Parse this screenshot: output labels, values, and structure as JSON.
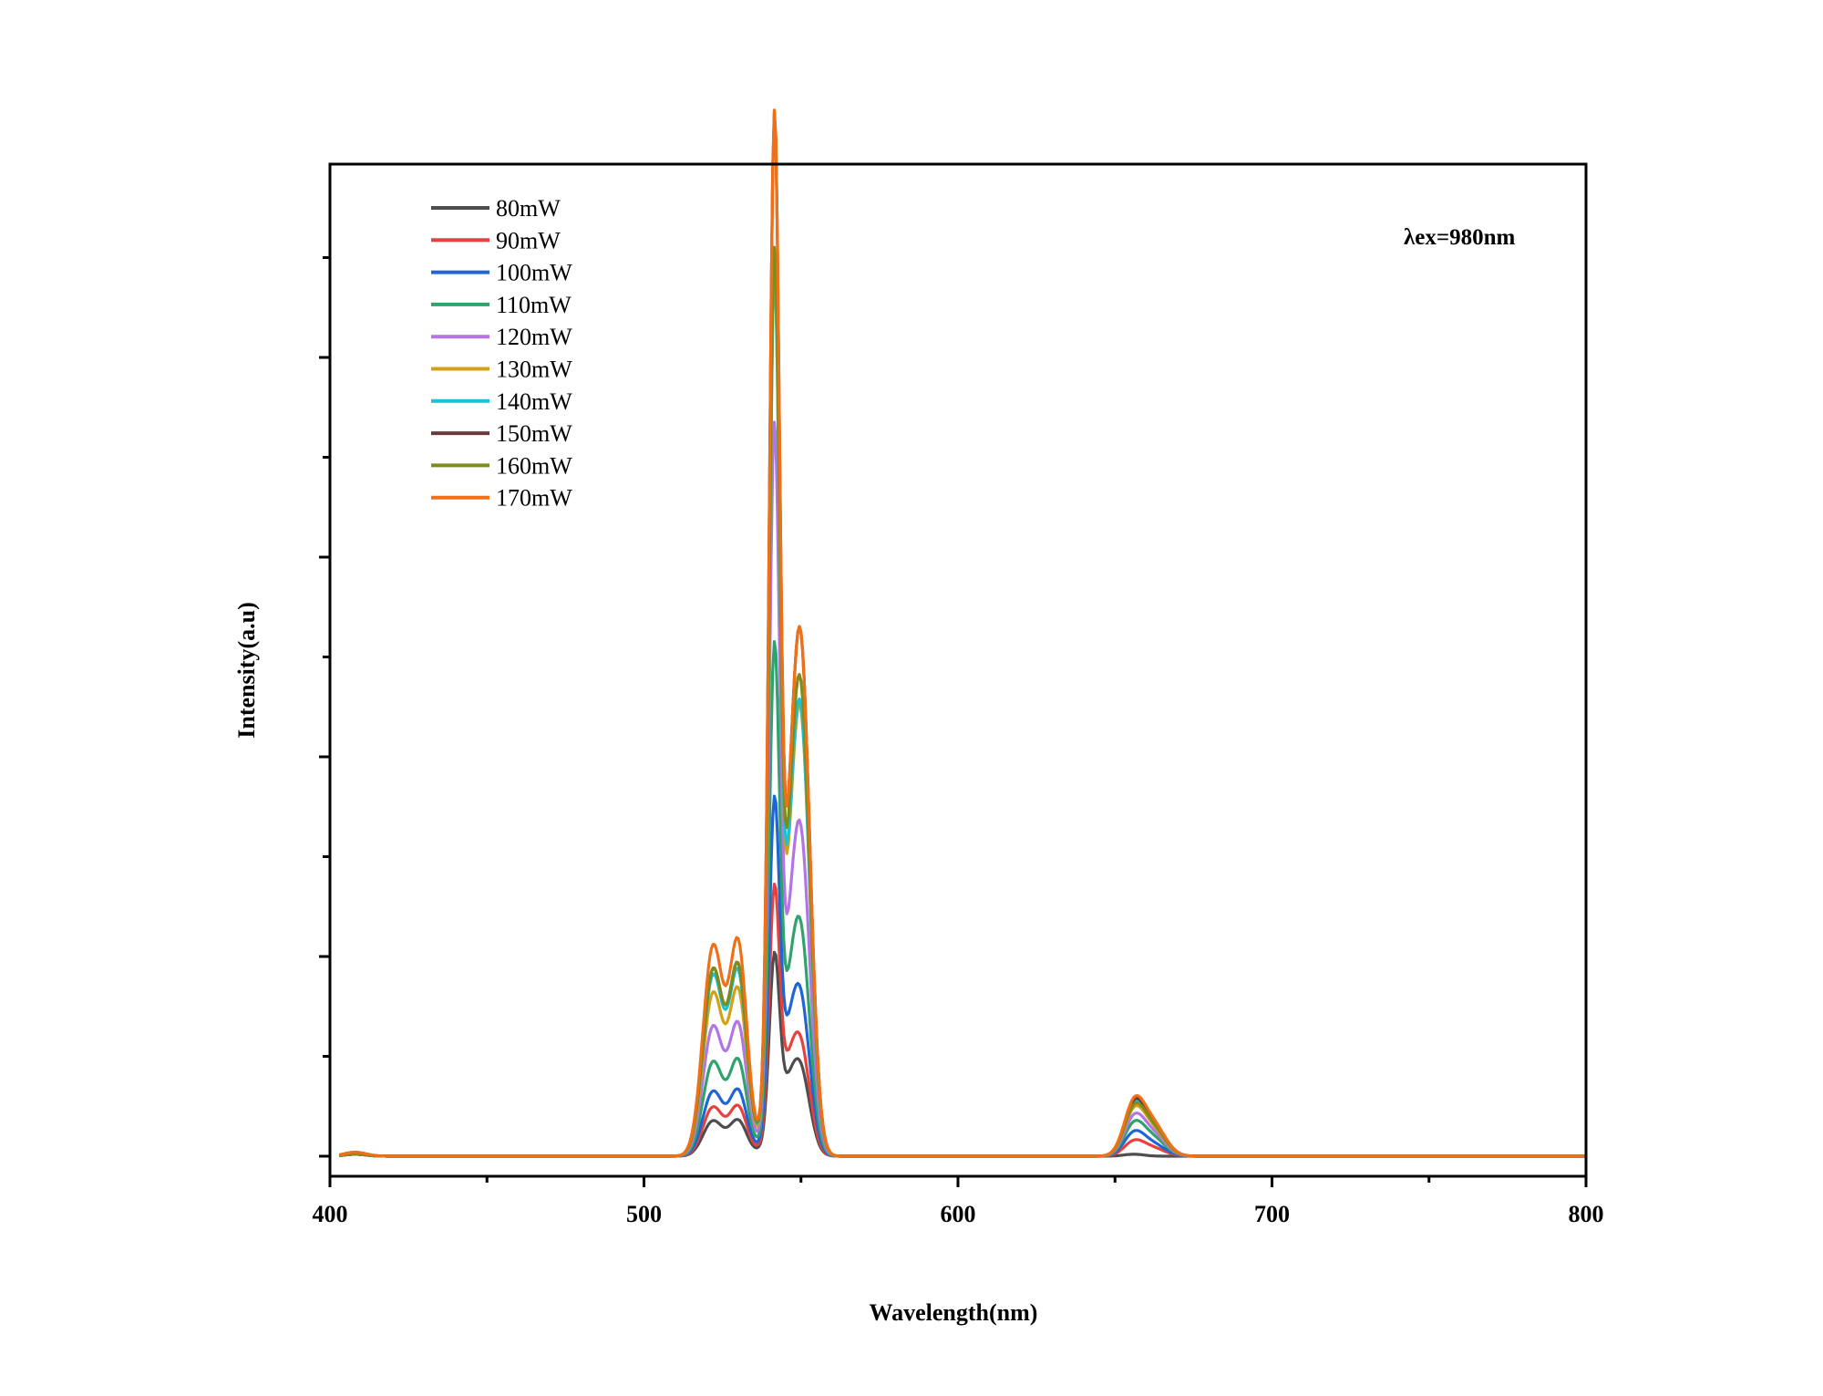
{
  "chart_data": {
    "type": "line",
    "xlabel": "Wavelength(nm)",
    "ylabel": "Intensity(a.u)",
    "xlim": [
      400,
      800
    ],
    "ylim": [
      -0.1,
      5.0
    ],
    "x_ticks": [
      400,
      500,
      600,
      700,
      800
    ],
    "y_ticks_labeled": false,
    "grid": false,
    "legend_placement": "top-left",
    "annotation": "λex=980nm",
    "peak_positions_nm": [
      408,
      522,
      530,
      541.5,
      545,
      550,
      656,
      662
    ],
    "series": [
      {
        "name": "80mW",
        "color": "#4d4d4d",
        "peaks": [
          0.02,
          0.18,
          0.18,
          0.85,
          0.28,
          0.35,
          0.01,
          0.0
        ]
      },
      {
        "name": "90mW",
        "color": "#e8413c",
        "peaks": [
          0.01,
          0.25,
          0.25,
          1.15,
          0.35,
          0.45,
          0.07,
          0.04
        ]
      },
      {
        "name": "100mW",
        "color": "#1f65d6",
        "peaks": [
          0.01,
          0.33,
          0.33,
          1.53,
          0.45,
          0.65,
          0.11,
          0.06
        ]
      },
      {
        "name": "110mW",
        "color": "#2fa36b",
        "peaks": [
          0.01,
          0.48,
          0.48,
          2.25,
          0.55,
          0.95,
          0.15,
          0.09
        ]
      },
      {
        "name": "120mW",
        "color": "#b374e6",
        "peaks": [
          0.01,
          0.66,
          0.66,
          3.3,
          0.65,
          1.4,
          0.18,
          0.11
        ]
      },
      {
        "name": "130mW",
        "color": "#d4a017",
        "peaks": [
          0.01,
          0.83,
          0.83,
          4.0,
          0.75,
          1.95,
          0.21,
          0.13
        ]
      },
      {
        "name": "140mW",
        "color": "#17c3d4",
        "peaks": [
          0.01,
          0.92,
          0.92,
          3.98,
          0.8,
          1.95,
          0.23,
          0.14
        ]
      },
      {
        "name": "150mW",
        "color": "#6b3a3a",
        "peaks": [
          0.01,
          0.95,
          0.95,
          4.74,
          0.85,
          2.3,
          0.24,
          0.15
        ]
      },
      {
        "name": "160mW",
        "color": "#7d8c1a",
        "peaks": [
          0.01,
          0.95,
          0.95,
          4.05,
          0.85,
          2.05,
          0.22,
          0.14
        ]
      },
      {
        "name": "170mW",
        "color": "#f07018",
        "peaks": [
          0.02,
          1.07,
          1.07,
          4.75,
          0.85,
          2.3,
          0.25,
          0.16
        ]
      }
    ]
  }
}
